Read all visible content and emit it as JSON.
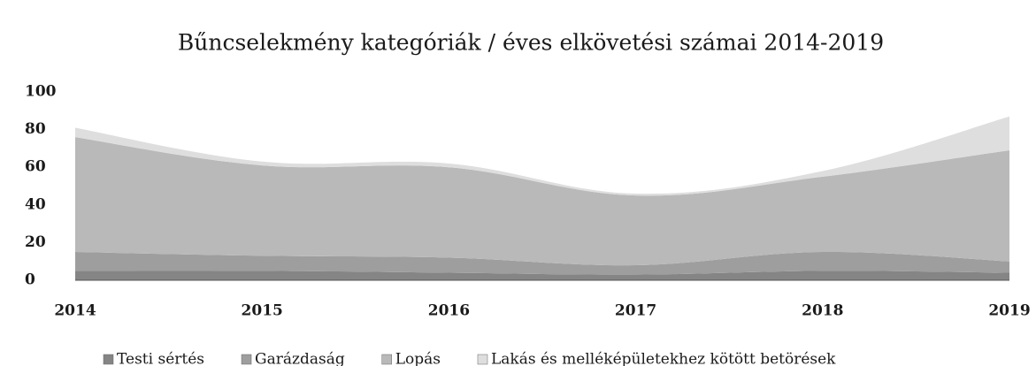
{
  "chart_data": {
    "type": "area",
    "stacked": true,
    "title": "Bűncselekmény kategóriák / éves elkövetési számai  2014-2019",
    "categories": [
      "2014",
      "2015",
      "2016",
      "2017",
      "2018",
      "2019"
    ],
    "series": [
      {
        "name": "Testi sértés",
        "color": "#858585",
        "values": [
          5,
          5,
          4,
          3,
          5,
          4
        ]
      },
      {
        "name": "Garázdaság",
        "color": "#9e9e9e",
        "values": [
          10,
          8,
          8,
          5,
          10,
          6
        ]
      },
      {
        "name": "Lopás",
        "color": "#b9b9b9",
        "values": [
          61,
          48,
          48,
          37,
          40,
          59
        ]
      },
      {
        "name": "Lakás és melléképületekhez kötött betörések",
        "color": "#dedede",
        "values": [
          5,
          2,
          2,
          1,
          3,
          18
        ]
      }
    ],
    "ylim": [
      0,
      100
    ],
    "yticks": [
      0,
      20,
      40,
      60,
      80,
      100
    ],
    "grid": false,
    "legend": "bottom"
  }
}
